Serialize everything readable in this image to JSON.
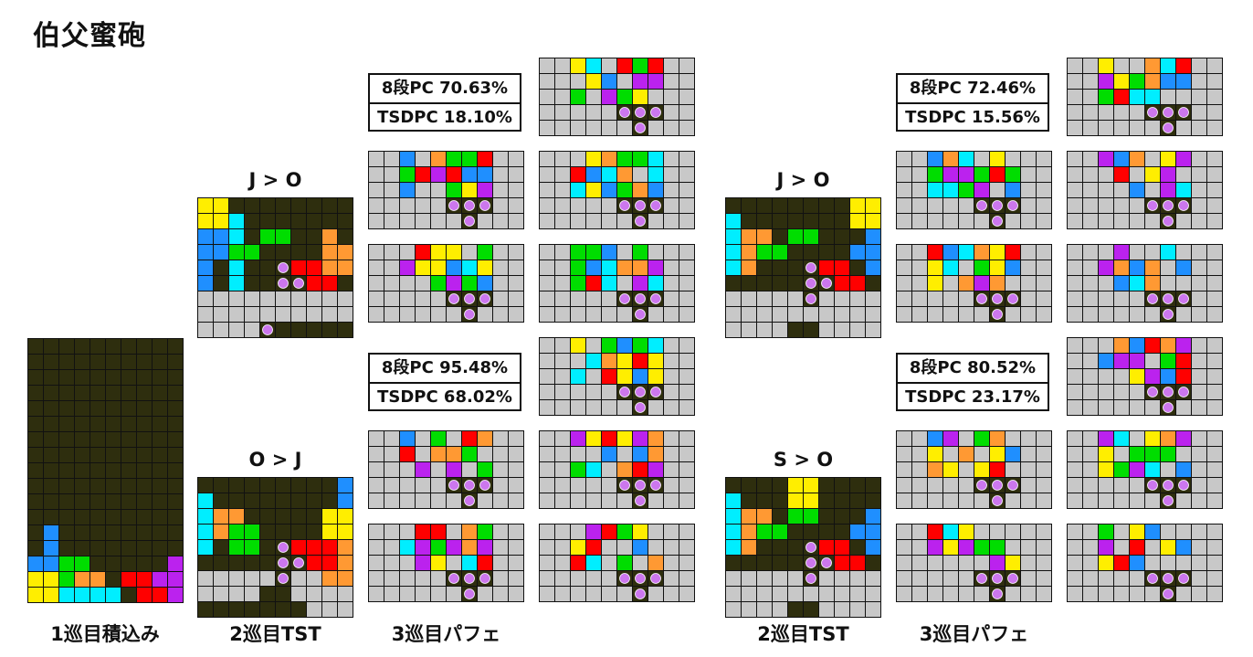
{
  "title": "伯父蜜砲",
  "rules": [
    "J > O",
    "O > J",
    "J > O",
    "S > O"
  ],
  "captions": [
    "1巡目積込み",
    "2巡目TST",
    "3巡目パフェ",
    "2巡目TST",
    "3巡目パフェ"
  ],
  "stats": [
    {
      "pc": "8段PC 70.63%",
      "tsd": "TSDPC 18.10%"
    },
    {
      "pc": "8段PC 95.48%",
      "tsd": "TSDPC 68.02%"
    },
    {
      "pc": "8段PC 72.46%",
      "tsd": "TSDPC 15.56%"
    },
    {
      "pc": "8段PC 80.52%",
      "tsd": "TSDPC 23.17%"
    }
  ],
  "palette": {
    ".": "#c8c8c8",
    "D": "#2e2e0e",
    "J": "#1f8fff",
    "L": "#ff9933",
    "O": "#ffee00",
    "S": "#00dd00",
    "Z": "#ff0000",
    "I": "#00eeff",
    "T": "#bb22ee",
    "P": "#2e2e0e",
    "B": "#2e2e0e"
  },
  "dot_colors": {
    "P": "#cc77ee",
    "B": "#33bbee"
  },
  "boards": [
    {
      "id": "stack",
      "rows": [
        "DDDDDDDDDD",
        "DDDDDDDDDD",
        "DDDDDDDDDD",
        "DDDDDDDDDD",
        "DDDDDDDDDD",
        "DDDDDDDDDD",
        "DDDDDDDDDD",
        "DDDDDDDDDD",
        "DDDDDDDDDD",
        "DDDDDDDDDD",
        "DDDDDDDDDD",
        "DDDDDDDDDD",
        "DJDDDDDDDD",
        "DJDDDDDDDD",
        "JJSSDDDDDT",
        "OOSLLDZZTT",
        "OOIIIIDZZT"
      ]
    },
    {
      "id": "tst-1-a",
      "rows": [
        "OODDDDDDDD",
        "OOIDDDDDDD",
        "JJIDSSDDLD",
        "JJSSDDDDLL",
        "JDIDDPZZLL",
        "JDIDDPPZZD",
        "..........",
        "..........",
        "....PDDDDD"
      ]
    },
    {
      "id": "tst-1-b",
      "rows": [
        "DDDDDDDDDJ",
        "IDDDDDDDDJ",
        "ILLDDDDDOO",
        "ILSSDDDDOO",
        "IDSSDPZZZL",
        "DDDDDPPZZL",
        ".....P..LL",
        "....DD....",
        "DDDDDDD..."
      ]
    },
    {
      "id": "tst-2-a",
      "rows": [
        "DDDDDDDDOO",
        "IDDDDDDDOO",
        "ILLDSSDDDJ",
        "ILSSDDDDJJ",
        "ILDDDPZZDJ",
        "DDDDDPPZZD",
        ".....P....",
        "..........",
        "....DD...."
      ]
    },
    {
      "id": "tst-2-b",
      "rows": [
        "DDDDOODDDD",
        "IDDDOODDDD",
        "ILLDSSDDDJ",
        "ILSSDDDDJJ",
        "ILDDDPZZDJ",
        "DDDDDPPZZD",
        ".....P....",
        "..........",
        "....DD...."
      ]
    }
  ]
}
